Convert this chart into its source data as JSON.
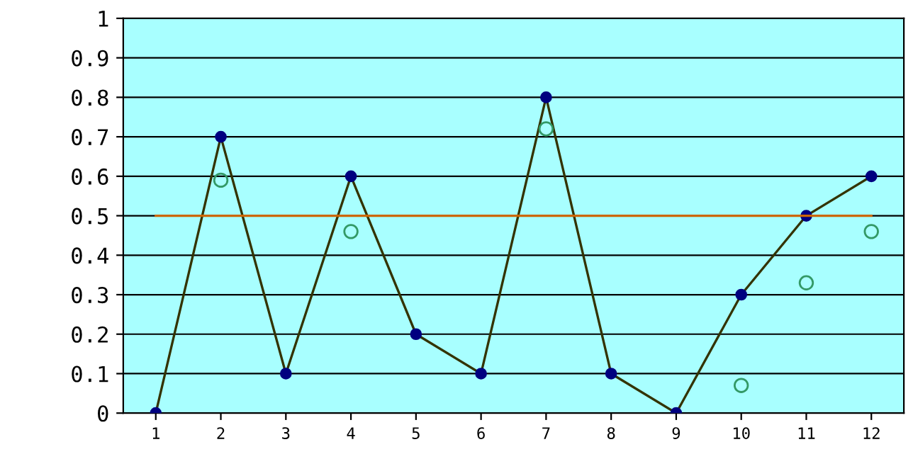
{
  "chart_data": {
    "type": "line",
    "categories": [
      "1",
      "2",
      "3",
      "4",
      "5",
      "6",
      "7",
      "8",
      "9",
      "10",
      "11",
      "12"
    ],
    "series": [
      {
        "color": "#000080",
        "marker": "circle",
        "values": [
          0,
          0.7,
          0.1,
          0.6,
          0.2,
          0.1,
          0.8,
          0.1,
          0,
          0.3,
          0.5,
          0.6
        ]
      },
      {
        "type": "scatter",
        "color": "#339966",
        "marker": "circle",
        "values": [
          null,
          0.59,
          null,
          0.46,
          null,
          null,
          0.72,
          null,
          null,
          0.07,
          0.33,
          0.46
        ]
      },
      {
        "type": "line",
        "color": "#cc6600",
        "marker": "none",
        "values": [
          0.5,
          0.5,
          0.5,
          0.5,
          0.5,
          0.5,
          0.5,
          0.5,
          0.5,
          0.5,
          0.5,
          0.5
        ]
      }
    ],
    "ylim": [
      0,
      1
    ],
    "yticks": [
      0,
      0.1,
      0.2,
      0.3,
      0.4,
      0.5,
      0.6,
      0.7,
      0.8,
      0.9,
      1
    ],
    "grid": "y",
    "legend": false
  }
}
